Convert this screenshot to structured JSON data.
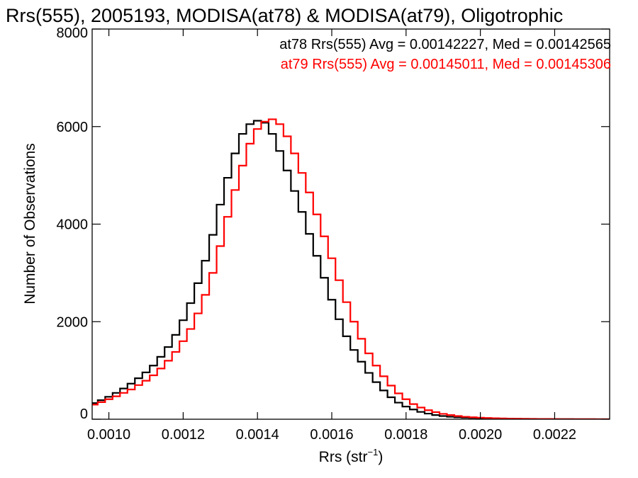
{
  "chart_data": {
    "type": "line",
    "title": "Rrs(555), 2005193, MODISA(at78) & MODISA(at79), Oligotrophic",
    "xlabel_main": "Rrs (str",
    "xlabel_sup": "−1",
    "xlabel_close": ")",
    "ylabel": "Number of Observations",
    "xlim": [
      0.000955,
      0.002348
    ],
    "ylim": [
      0,
      8000
    ],
    "xticks": [
      {
        "value": 0.001,
        "label": "0.0010"
      },
      {
        "value": 0.0012,
        "label": "0.0012"
      },
      {
        "value": 0.0014,
        "label": "0.0014"
      },
      {
        "value": 0.0016,
        "label": "0.0016"
      },
      {
        "value": 0.0018,
        "label": "0.0018"
      },
      {
        "value": 0.002,
        "label": "0.0020"
      },
      {
        "value": 0.0022,
        "label": "0.0022"
      }
    ],
    "yticks": [
      {
        "value": 0,
        "label": "0"
      },
      {
        "value": 2000,
        "label": "2000"
      },
      {
        "value": 4000,
        "label": "4000"
      },
      {
        "value": 6000,
        "label": "6000"
      },
      {
        "value": 8000,
        "label": "8000"
      }
    ],
    "grid": false,
    "annotations": [
      "at78 Rrs(555) Avg = 0.00142227, Med = 0.00142565",
      "at79 Rrs(555) Avg = 0.00145011, Med = 0.00145306"
    ],
    "series": [
      {
        "color": "#000000",
        "x": [
          0.00096,
          0.00098,
          0.001,
          0.00102,
          0.00104,
          0.00106,
          0.00108,
          0.0011,
          0.00112,
          0.00114,
          0.00116,
          0.00118,
          0.0012,
          0.00122,
          0.00124,
          0.00126,
          0.00128,
          0.0013,
          0.00132,
          0.00134,
          0.00136,
          0.00138,
          0.0014,
          0.00142,
          0.00144,
          0.00146,
          0.00148,
          0.0015,
          0.00152,
          0.00154,
          0.00156,
          0.00158,
          0.0016,
          0.00162,
          0.00164,
          0.00166,
          0.00168,
          0.0017,
          0.00172,
          0.00174,
          0.00176,
          0.00178,
          0.0018,
          0.00182,
          0.00184,
          0.00186,
          0.00188,
          0.0019,
          0.00192,
          0.00194,
          0.00196,
          0.00198,
          0.002,
          0.00202,
          0.00204,
          0.00206,
          0.00208,
          0.0021,
          0.00212,
          0.00214,
          0.00216,
          0.00218,
          0.0022,
          0.00222,
          0.00224,
          0.00226,
          0.00228,
          0.0023,
          0.00232,
          0.00234
        ],
        "y": [
          330,
          390,
          460,
          540,
          630,
          730,
          840,
          960,
          1100,
          1280,
          1480,
          1730,
          2030,
          2380,
          2790,
          3250,
          3780,
          4400,
          4950,
          5450,
          5850,
          6050,
          6120,
          6080,
          5850,
          5500,
          5100,
          4680,
          4250,
          3800,
          3350,
          2900,
          2450,
          2050,
          1700,
          1420,
          1180,
          950,
          760,
          590,
          450,
          340,
          260,
          200,
          150,
          115,
          85,
          65,
          50,
          40,
          32,
          26,
          20,
          16,
          13,
          10,
          8,
          6,
          5,
          4,
          3,
          3,
          2,
          2,
          2,
          1,
          1,
          1,
          1,
          1
        ]
      },
      {
        "color": "#ff0000",
        "x": [
          0.00096,
          0.00098,
          0.001,
          0.00102,
          0.00104,
          0.00106,
          0.00108,
          0.0011,
          0.00112,
          0.00114,
          0.00116,
          0.00118,
          0.0012,
          0.00122,
          0.00124,
          0.00126,
          0.00128,
          0.0013,
          0.00132,
          0.00134,
          0.00136,
          0.00138,
          0.0014,
          0.00142,
          0.00144,
          0.00146,
          0.00148,
          0.0015,
          0.00152,
          0.00154,
          0.00156,
          0.00158,
          0.0016,
          0.00162,
          0.00164,
          0.00166,
          0.00168,
          0.0017,
          0.00172,
          0.00174,
          0.00176,
          0.00178,
          0.0018,
          0.00182,
          0.00184,
          0.00186,
          0.00188,
          0.0019,
          0.00192,
          0.00194,
          0.00196,
          0.00198,
          0.002,
          0.00202,
          0.00204,
          0.00206,
          0.00208,
          0.0021,
          0.00212,
          0.00214,
          0.00216,
          0.00218,
          0.0022,
          0.00222,
          0.00224,
          0.00226,
          0.00228,
          0.0023,
          0.00232,
          0.00234
        ],
        "y": [
          300,
          350,
          410,
          470,
          540,
          610,
          700,
          790,
          900,
          1040,
          1200,
          1380,
          1600,
          1850,
          2170,
          2550,
          3000,
          3550,
          4150,
          4700,
          5200,
          5650,
          5950,
          6100,
          6150,
          6050,
          5800,
          5450,
          5050,
          4650,
          4200,
          3750,
          3300,
          2850,
          2400,
          2000,
          1650,
          1350,
          1100,
          880,
          690,
          530,
          410,
          310,
          240,
          185,
          145,
          110,
          85,
          65,
          50,
          40,
          32,
          26,
          21,
          17,
          14,
          11,
          9,
          7,
          6,
          5,
          4,
          3,
          3,
          2,
          2,
          2,
          1,
          1
        ]
      }
    ]
  }
}
